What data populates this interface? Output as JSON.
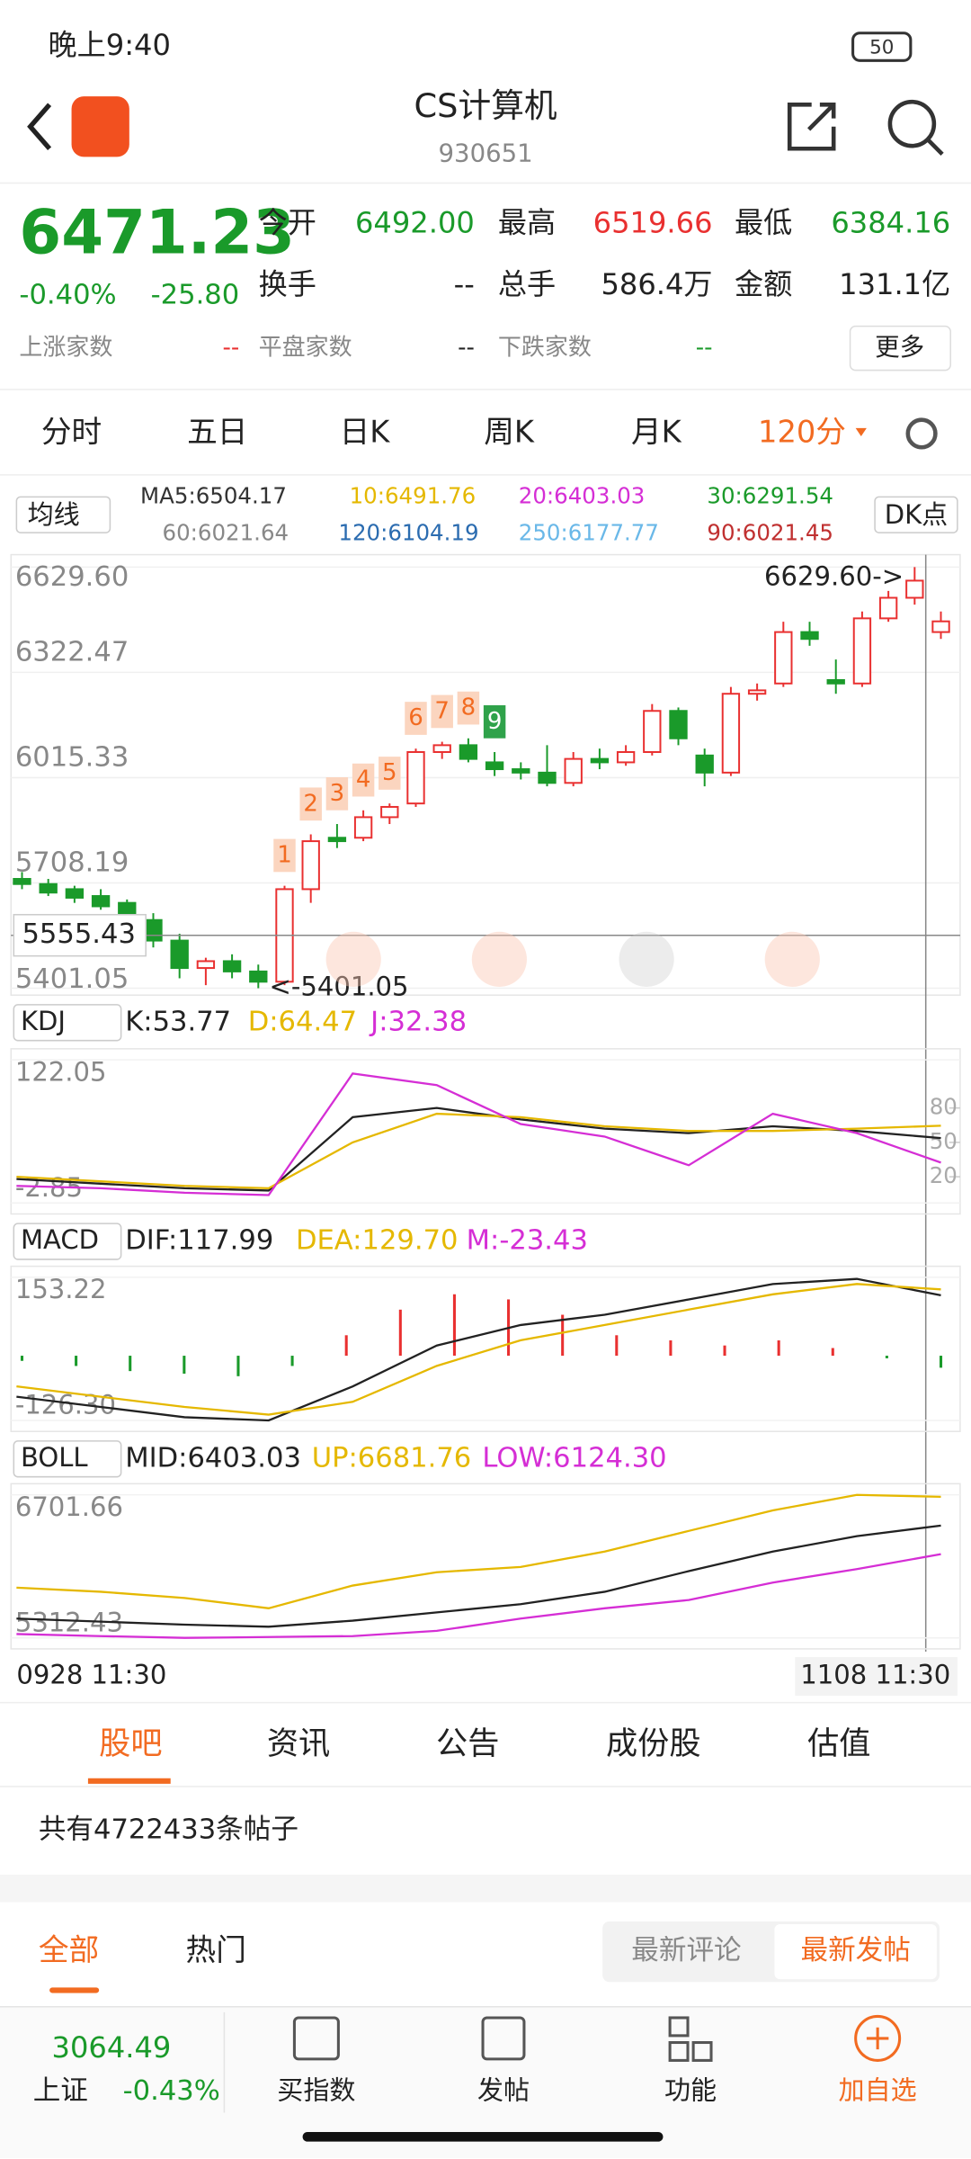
{
  "status": {
    "time": "晚上9:40",
    "battery": "50"
  },
  "header": {
    "title": "CS计算机",
    "code": "930651"
  },
  "quote": {
    "price": "6471.23",
    "change_pct": "-0.40%",
    "change": "-25.80",
    "open_label": "今开",
    "open": "6492.00",
    "high_label": "最高",
    "high": "6519.66",
    "low_label": "最低",
    "low": "6384.16",
    "turnover_label": "换手",
    "turnover": "--",
    "volume_label": "总手",
    "volume": "586.4万",
    "amount_label": "金额",
    "amount": "131.1亿",
    "up_label": "上涨家数",
    "up": "--",
    "flat_label": "平盘家数",
    "flat": "--",
    "down_label": "下跌家数",
    "down": "--",
    "more": "更多"
  },
  "period_tabs": [
    "分时",
    "五日",
    "日K",
    "周K",
    "月K",
    "120分"
  ],
  "ma": {
    "selector": "均线",
    "labels": [
      "MA5:6504.17",
      "10:6491.76",
      "20:6403.03",
      "30:6291.54",
      "60:6021.64",
      "120:6104.19",
      "250:6177.77",
      "90:6021.45"
    ],
    "dk": "DK点"
  },
  "chart_data": {
    "type": "candlestick",
    "open": [
      5720,
      5705,
      5690,
      5670,
      5650,
      5600,
      5540,
      5460,
      5480,
      5450,
      5420,
      5690,
      5840,
      5840,
      5900,
      5940,
      6090,
      6110,
      6060,
      6040,
      6030,
      6000,
      6070,
      6060,
      6090,
      6210,
      6080,
      6030,
      6260,
      6290,
      6440,
      6300,
      6290,
      6480,
      6540,
      6440
    ],
    "high": [
      5740,
      5720,
      5700,
      5690,
      5660,
      5620,
      5560,
      5490,
      5500,
      5470,
      5700,
      5850,
      5880,
      5920,
      5940,
      6100,
      6120,
      6130,
      6090,
      6060,
      6110,
      6090,
      6100,
      6110,
      6230,
      6220,
      6100,
      6280,
      6290,
      6470,
      6470,
      6360,
      6500,
      6560,
      6629.6,
      6500
    ],
    "low": [
      5690,
      5670,
      5650,
      5630,
      5590,
      5520,
      5430,
      5410,
      5430,
      5401.05,
      5410,
      5650,
      5810,
      5830,
      5880,
      5930,
      6070,
      6060,
      6020,
      6010,
      5990,
      5990,
      6040,
      6050,
      6080,
      6110,
      5990,
      6020,
      6240,
      6280,
      6400,
      6260,
      6280,
      6470,
      6520,
      6420
    ],
    "close": [
      5705,
      5680,
      5665,
      5640,
      5600,
      5540,
      5460,
      5480,
      5450,
      5420,
      5690,
      5830,
      5830,
      5900,
      5930,
      6090,
      6110,
      6070,
      6040,
      6030,
      6000,
      6070,
      6060,
      6090,
      6210,
      6130,
      6030,
      6260,
      6270,
      6440,
      6420,
      6290,
      6480,
      6540,
      6590,
      6471.23
    ],
    "up_color": "#e93030",
    "down_color": "#1a9a2a",
    "ylim": [
      5401.05,
      6629.6
    ],
    "yticks": [
      {
        "value": 6629.6,
        "label": "6629.60"
      },
      6322.47,
      6015.33,
      5708.19,
      5401.05
    ],
    "crosshair": {
      "value": 5555.43,
      "label": "5555.43"
    },
    "annotations": [
      "6629.60->",
      "<-5401.05"
    ],
    "markers": [
      "1",
      "2",
      "3",
      "4",
      "5",
      "6",
      "7",
      "8",
      "9"
    ],
    "x_labels": [
      "0928 11:30",
      "1108 11:30"
    ]
  },
  "kdj": {
    "selector": "KDJ",
    "labels": [
      "K:53.77",
      "D:64.47",
      "J:32.38"
    ],
    "ylim": [
      -2.85,
      122.05
    ],
    "yticks": [
      122.05,
      -2.85
    ],
    "y2ticks": [
      80,
      50,
      20
    ],
    "series": [
      {
        "name": "K",
        "color": "#222222",
        "values": [
          18,
          14,
          10,
          8,
          72,
          80,
          70,
          62,
          58,
          64,
          60,
          53.77
        ]
      },
      {
        "name": "D",
        "color": "#e5b800",
        "values": [
          20,
          16,
          12,
          10,
          50,
          75,
          72,
          64,
          60,
          60,
          62,
          64.47
        ]
      },
      {
        "name": "J",
        "color": "#d52ed5",
        "values": [
          12,
          10,
          6,
          4,
          110,
          100,
          66,
          55,
          30,
          75,
          58,
          32.38
        ]
      }
    ]
  },
  "macd": {
    "selector": "MACD",
    "labels": [
      "DIF:117.99",
      "DEA:129.70",
      "M:-23.43"
    ],
    "ylim": [
      -126.3,
      153.22
    ],
    "yticks": [
      153.22,
      {
        "value": -126.3,
        "label": "-126.30"
      }
    ],
    "series": [
      {
        "name": "DIF",
        "color": "#222222",
        "values": [
          -80,
          -100,
          -120,
          -126.3,
          -60,
          20,
          60,
          80,
          110,
          140,
          150,
          117.99
        ]
      },
      {
        "name": "DEA",
        "color": "#e5b800",
        "values": [
          -60,
          -80,
          -100,
          -115,
          -90,
          -20,
          30,
          60,
          90,
          120,
          140,
          129.7
        ]
      }
    ],
    "histogram": [
      -10,
      -20,
      -30,
      -35,
      -40,
      -20,
      40,
      90,
      120,
      110,
      80,
      40,
      30,
      20,
      30,
      15,
      -5,
      -23.43
    ]
  },
  "boll": {
    "selector": "BOLL",
    "labels": [
      "MID:6403.03",
      "UP:6681.76",
      "LOW:6124.30"
    ],
    "ylim": [
      5312.43,
      6701.66
    ],
    "yticks": [
      6701.66,
      5312.43
    ],
    "series": [
      {
        "name": "MID",
        "color": "#222222",
        "values": [
          5500,
          5470,
          5440,
          5420,
          5480,
          5560,
          5640,
          5760,
          5960,
          6150,
          6300,
          6403.03
        ]
      },
      {
        "name": "UP",
        "color": "#e5b800",
        "values": [
          5800,
          5760,
          5700,
          5600,
          5820,
          5950,
          6000,
          6150,
          6350,
          6550,
          6700,
          6681.76
        ]
      },
      {
        "name": "LOW",
        "color": "#d52ed5",
        "values": [
          5350,
          5330,
          5312.43,
          5320,
          5330,
          5380,
          5500,
          5600,
          5680,
          5850,
          5980,
          6124.3
        ]
      }
    ]
  },
  "info_tabs": [
    "股吧",
    "资讯",
    "公告",
    "成份股",
    "估值"
  ],
  "posts": "共有4722433条帖子",
  "filter": [
    "全部",
    "热门"
  ],
  "sort": [
    "最新评论",
    "最新发帖"
  ],
  "bottom": {
    "index_value": "3064.49",
    "index_name": "上证",
    "index_change": "-0.43%",
    "actions": [
      "买指数",
      "发帖",
      "功能",
      "加自选"
    ]
  }
}
